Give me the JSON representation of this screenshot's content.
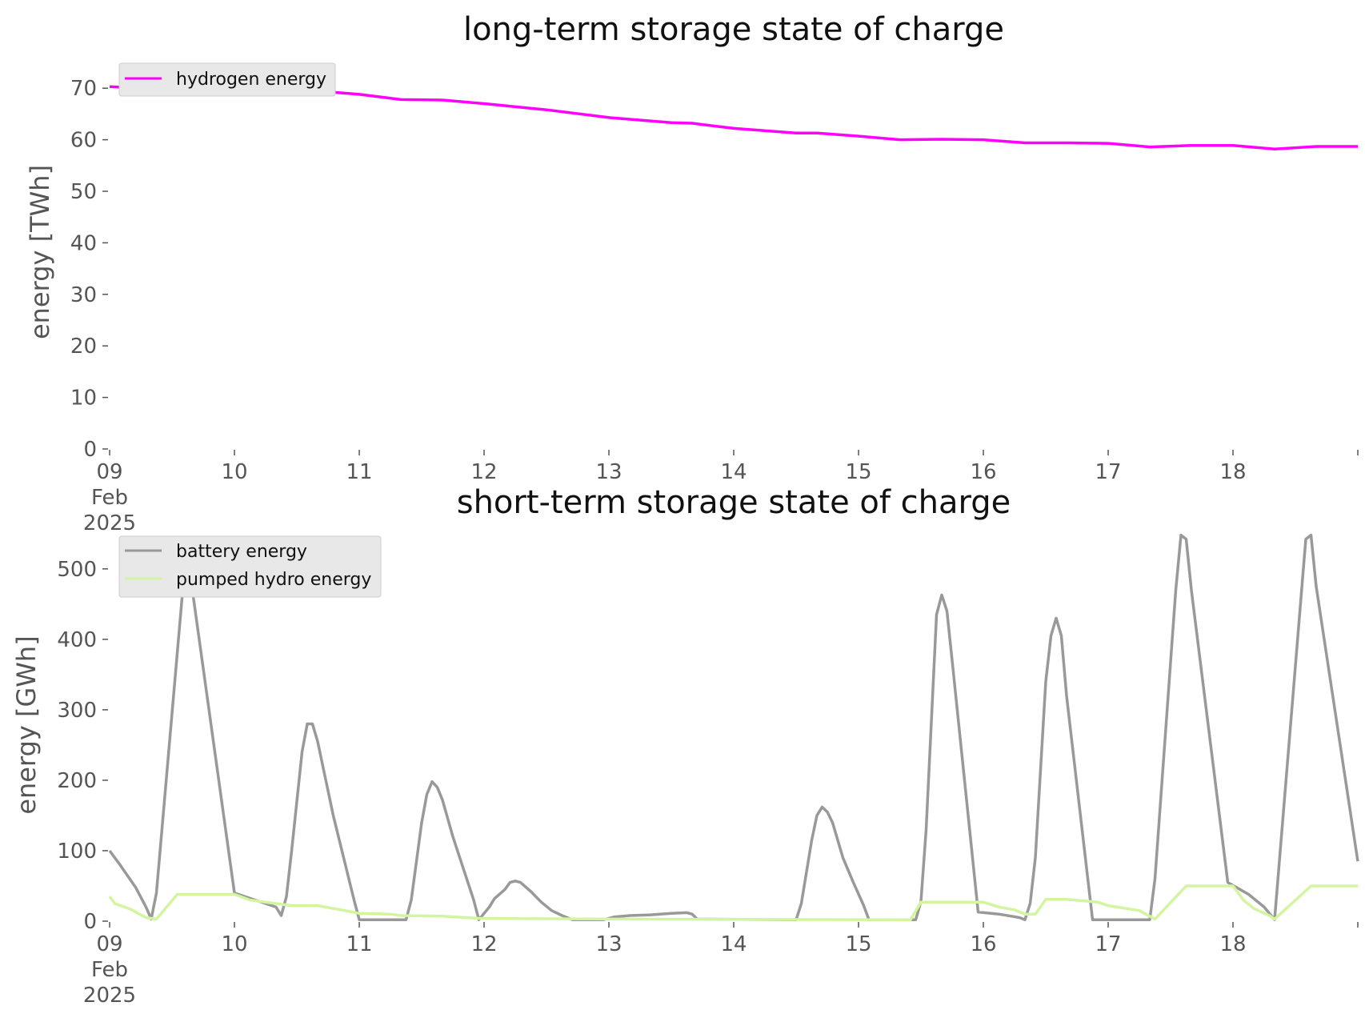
{
  "chart_data": [
    {
      "type": "line",
      "title": "long-term storage state of charge",
      "ylabel": "energy [TWh]",
      "xlabel": "",
      "xlim": [
        "2025-02-09 00:00",
        "2025-02-19 00:00"
      ],
      "ylim": [
        0,
        75
      ],
      "x_ticks": [
        "09\nFeb\n2025",
        "10",
        "11",
        "12",
        "13",
        "14",
        "15",
        "16",
        "17",
        "18"
      ],
      "y_ticks": [
        "0",
        "10",
        "20",
        "30",
        "40",
        "50",
        "60",
        "70"
      ],
      "grid": false,
      "legend_position": "top-left",
      "series": [
        {
          "name": "hydrogen energy",
          "color": "#ff00ff",
          "points": [
            [
              "2025-02-09 00:00",
              70.3
            ],
            [
              "2025-02-09 06:00",
              70.0
            ],
            [
              "2025-02-09 12:00",
              69.8
            ],
            [
              "2025-02-09 18:00",
              69.9
            ],
            [
              "2025-02-10 00:00",
              69.8
            ],
            [
              "2025-02-10 06:00",
              69.7
            ],
            [
              "2025-02-10 12:00",
              69.5
            ],
            [
              "2025-02-10 18:00",
              69.3
            ],
            [
              "2025-02-11 00:00",
              68.8
            ],
            [
              "2025-02-11 08:00",
              67.8
            ],
            [
              "2025-02-11 16:00",
              67.7
            ],
            [
              "2025-02-12 00:00",
              67.0
            ],
            [
              "2025-02-12 12:00",
              65.8
            ],
            [
              "2025-02-13 00:00",
              64.3
            ],
            [
              "2025-02-13 12:00",
              63.3
            ],
            [
              "2025-02-13 16:00",
              63.2
            ],
            [
              "2025-02-14 00:00",
              62.2
            ],
            [
              "2025-02-14 12:00",
              61.3
            ],
            [
              "2025-02-14 16:00",
              61.3
            ],
            [
              "2025-02-15 00:00",
              60.7
            ],
            [
              "2025-02-15 08:00",
              60.0
            ],
            [
              "2025-02-15 16:00",
              60.1
            ],
            [
              "2025-02-16 00:00",
              60.0
            ],
            [
              "2025-02-16 08:00",
              59.4
            ],
            [
              "2025-02-16 16:00",
              59.4
            ],
            [
              "2025-02-17 00:00",
              59.3
            ],
            [
              "2025-02-17 08:00",
              58.6
            ],
            [
              "2025-02-17 16:00",
              58.9
            ],
            [
              "2025-02-18 00:00",
              58.9
            ],
            [
              "2025-02-18 08:00",
              58.2
            ],
            [
              "2025-02-18 16:00",
              58.7
            ],
            [
              "2025-02-19 00:00",
              58.7
            ]
          ]
        }
      ]
    },
    {
      "type": "line",
      "title": "short-term storage state of charge",
      "ylabel": "energy [GWh]",
      "xlabel": "",
      "xlim": [
        "2025-02-09 00:00",
        "2025-02-19 00:00"
      ],
      "ylim": [
        0,
        560
      ],
      "x_ticks": [
        "09\nFeb\n2025",
        "10",
        "11",
        "12",
        "13",
        "14",
        "15",
        "16",
        "17",
        "18"
      ],
      "y_ticks": [
        "0",
        "100",
        "200",
        "300",
        "400",
        "500"
      ],
      "grid": false,
      "legend_position": "top-left",
      "series": [
        {
          "name": "battery energy",
          "color": "#999999",
          "points": [
            [
              "2025-02-09 00:00",
              100
            ],
            [
              "2025-02-09 02:00",
              80
            ],
            [
              "2025-02-09 05:00",
              48
            ],
            [
              "2025-02-09 07:00",
              20
            ],
            [
              "2025-02-09 08:00",
              3
            ],
            [
              "2025-02-09 09:00",
              40
            ],
            [
              "2025-02-09 14:00",
              465
            ],
            [
              "2025-02-09 15:00",
              500
            ],
            [
              "2025-02-09 16:00",
              465
            ],
            [
              "2025-02-10 00:00",
              40
            ],
            [
              "2025-02-10 04:00",
              30
            ],
            [
              "2025-02-10 08:00",
              20
            ],
            [
              "2025-02-10 09:00",
              8
            ],
            [
              "2025-02-10 10:00",
              35
            ],
            [
              "2025-02-10 11:00",
              100
            ],
            [
              "2025-02-10 13:00",
              240
            ],
            [
              "2025-02-10 14:00",
              280
            ],
            [
              "2025-02-10 15:00",
              280
            ],
            [
              "2025-02-10 16:00",
              255
            ],
            [
              "2025-02-10 17:00",
              220
            ],
            [
              "2025-02-10 19:00",
              150
            ],
            [
              "2025-02-10 21:00",
              90
            ],
            [
              "2025-02-10 23:00",
              30
            ],
            [
              "2025-02-11 00:00",
              2
            ],
            [
              "2025-02-11 09:00",
              2
            ],
            [
              "2025-02-11 10:00",
              30
            ],
            [
              "2025-02-11 12:00",
              140
            ],
            [
              "2025-02-11 13:00",
              180
            ],
            [
              "2025-02-11 14:00",
              198
            ],
            [
              "2025-02-11 15:00",
              190
            ],
            [
              "2025-02-11 16:00",
              172
            ],
            [
              "2025-02-11 18:00",
              120
            ],
            [
              "2025-02-11 20:00",
              75
            ],
            [
              "2025-02-11 22:00",
              30
            ],
            [
              "2025-02-11 23:00",
              2
            ],
            [
              "2025-02-12 01:00",
              20
            ],
            [
              "2025-02-12 02:00",
              32
            ],
            [
              "2025-02-12 04:00",
              45
            ],
            [
              "2025-02-12 05:00",
              55
            ],
            [
              "2025-02-12 06:00",
              57
            ],
            [
              "2025-02-12 07:00",
              55
            ],
            [
              "2025-02-12 09:00",
              42
            ],
            [
              "2025-02-12 11:00",
              27
            ],
            [
              "2025-02-12 13:00",
              15
            ],
            [
              "2025-02-12 15:00",
              8
            ],
            [
              "2025-02-12 17:00",
              2
            ],
            [
              "2025-02-12 23:00",
              2
            ],
            [
              "2025-02-13 01:00",
              6
            ],
            [
              "2025-02-13 04:00",
              8
            ],
            [
              "2025-02-13 08:00",
              9
            ],
            [
              "2025-02-13 12:00",
              11
            ],
            [
              "2025-02-13 15:00",
              12
            ],
            [
              "2025-02-13 16:00",
              10
            ],
            [
              "2025-02-13 17:00",
              3
            ],
            [
              "2025-02-14 12:00",
              2
            ],
            [
              "2025-02-14 13:00",
              25
            ],
            [
              "2025-02-14 14:00",
              70
            ],
            [
              "2025-02-14 15:00",
              115
            ],
            [
              "2025-02-14 16:00",
              150
            ],
            [
              "2025-02-14 17:00",
              162
            ],
            [
              "2025-02-14 18:00",
              155
            ],
            [
              "2025-02-14 19:00",
              140
            ],
            [
              "2025-02-14 21:00",
              90
            ],
            [
              "2025-02-14 23:00",
              55
            ],
            [
              "2025-02-15 01:00",
              22
            ],
            [
              "2025-02-15 02:00",
              2
            ],
            [
              "2025-02-15 11:00",
              2
            ],
            [
              "2025-02-15 12:00",
              28
            ],
            [
              "2025-02-15 13:00",
              130
            ],
            [
              "2025-02-15 15:00",
              435
            ],
            [
              "2025-02-15 16:00",
              463
            ],
            [
              "2025-02-15 17:00",
              440
            ],
            [
              "2025-02-15 18:00",
              370
            ],
            [
              "2025-02-15 23:00",
              13
            ],
            [
              "2025-02-16 03:00",
              10
            ],
            [
              "2025-02-16 07:00",
              5
            ],
            [
              "2025-02-16 08:00",
              2
            ],
            [
              "2025-02-16 09:00",
              25
            ],
            [
              "2025-02-16 10:00",
              90
            ],
            [
              "2025-02-16 12:00",
              340
            ],
            [
              "2025-02-16 13:00",
              405
            ],
            [
              "2025-02-16 14:00",
              430
            ],
            [
              "2025-02-16 15:00",
              405
            ],
            [
              "2025-02-16 16:00",
              320
            ],
            [
              "2025-02-16 21:00",
              2
            ],
            [
              "2025-02-17 08:00",
              2
            ],
            [
              "2025-02-17 09:00",
              60
            ],
            [
              "2025-02-17 13:00",
              470
            ],
            [
              "2025-02-17 14:00",
              548
            ],
            [
              "2025-02-17 15:00",
              542
            ],
            [
              "2025-02-17 16:00",
              470
            ],
            [
              "2025-02-17 23:00",
              55
            ],
            [
              "2025-02-18 03:00",
              38
            ],
            [
              "2025-02-18 06:00",
              20
            ],
            [
              "2025-02-18 08:00",
              2
            ],
            [
              "2025-02-18 14:00",
              542
            ],
            [
              "2025-02-18 15:00",
              548
            ],
            [
              "2025-02-18 16:00",
              475
            ],
            [
              "2025-02-19 00:00",
              85
            ]
          ]
        },
        {
          "name": "pumped hydro energy",
          "color": "#d4f5a0",
          "points": [
            [
              "2025-02-09 00:00",
              35
            ],
            [
              "2025-02-09 01:00",
              25
            ],
            [
              "2025-02-09 04:00",
              17
            ],
            [
              "2025-02-09 07:00",
              5
            ],
            [
              "2025-02-09 09:00",
              3
            ],
            [
              "2025-02-09 13:00",
              38
            ],
            [
              "2025-02-10 00:00",
              38
            ],
            [
              "2025-02-10 03:00",
              30
            ],
            [
              "2025-02-10 08:00",
              25
            ],
            [
              "2025-02-10 11:00",
              22
            ],
            [
              "2025-02-10 16:00",
              22
            ],
            [
              "2025-02-10 22:00",
              14
            ],
            [
              "2025-02-11 00:00",
              11
            ],
            [
              "2025-02-11 06:00",
              10
            ],
            [
              "2025-02-11 08:00",
              8
            ],
            [
              "2025-02-11 16:00",
              7
            ],
            [
              "2025-02-11 23:00",
              4
            ],
            [
              "2025-02-13 00:00",
              3
            ],
            [
              "2025-02-15 08:00",
              2
            ],
            [
              "2025-02-15 10:00",
              2
            ],
            [
              "2025-02-15 12:00",
              27
            ],
            [
              "2025-02-16 00:00",
              27
            ],
            [
              "2025-02-16 03:00",
              20
            ],
            [
              "2025-02-16 06:00",
              16
            ],
            [
              "2025-02-16 08:00",
              10
            ],
            [
              "2025-02-16 10:00",
              10
            ],
            [
              "2025-02-16 12:00",
              31
            ],
            [
              "2025-02-16 16:00",
              31
            ],
            [
              "2025-02-16 22:00",
              27
            ],
            [
              "2025-02-17 00:00",
              22
            ],
            [
              "2025-02-17 06:00",
              15
            ],
            [
              "2025-02-17 09:00",
              3
            ],
            [
              "2025-02-17 15:00",
              50
            ],
            [
              "2025-02-18 00:00",
              50
            ],
            [
              "2025-02-18 02:00",
              30
            ],
            [
              "2025-02-18 04:00",
              18
            ],
            [
              "2025-02-18 07:00",
              8
            ],
            [
              "2025-02-18 08:00",
              3
            ],
            [
              "2025-02-18 15:00",
              50
            ],
            [
              "2025-02-19 00:00",
              50
            ]
          ]
        }
      ]
    }
  ]
}
